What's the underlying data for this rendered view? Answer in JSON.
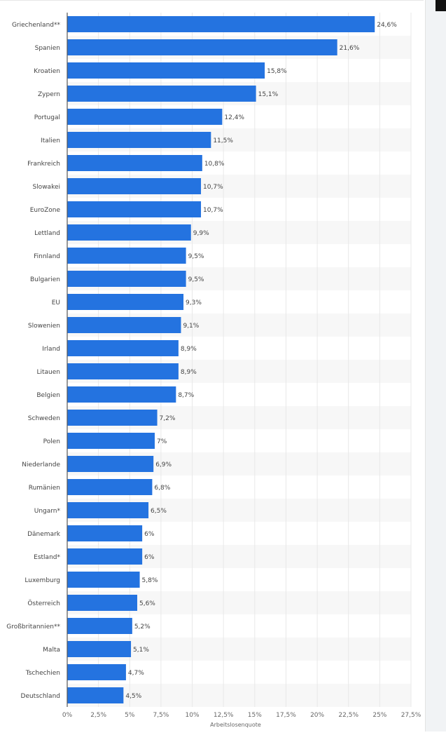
{
  "chart_data": {
    "type": "bar",
    "orientation": "horizontal",
    "categories": [
      "Griechenland**",
      "Spanien",
      "Kroatien",
      "Zypern",
      "Portugal",
      "Italien",
      "Frankreich",
      "Slowakei",
      "EuroZone",
      "Lettland",
      "Finnland",
      "Bulgarien",
      "EU",
      "Slowenien",
      "Irland",
      "Litauen",
      "Belgien",
      "Schweden",
      "Polen",
      "Niederlande",
      "Rumänien",
      "Ungarn*",
      "Dänemark",
      "Estland*",
      "Luxemburg",
      "Österreich",
      "Großbritannien**",
      "Malta",
      "Tschechien",
      "Deutschland"
    ],
    "values": [
      24.6,
      21.6,
      15.8,
      15.1,
      12.4,
      11.5,
      10.8,
      10.7,
      10.7,
      9.9,
      9.5,
      9.5,
      9.3,
      9.1,
      8.9,
      8.9,
      8.7,
      7.2,
      7,
      6.9,
      6.8,
      6.5,
      6,
      6,
      5.8,
      5.6,
      5.2,
      5.1,
      4.7,
      4.5
    ],
    "data_labels": [
      "24,6%",
      "21,6%",
      "15,8%",
      "15,1%",
      "12,4%",
      "11,5%",
      "10,8%",
      "10,7%",
      "10,7%",
      "9,9%",
      "9,5%",
      "9,5%",
      "9,3%",
      "9,1%",
      "8,9%",
      "8,9%",
      "8,7%",
      "7,2%",
      "7%",
      "6,9%",
      "6,8%",
      "6,5%",
      "6%",
      "6%",
      "5,8%",
      "5,6%",
      "5,2%",
      "5,1%",
      "4,7%",
      "4,5%"
    ],
    "xlabel": "Arbeitslosenquote",
    "ylabel": "",
    "xlim": [
      0,
      27.5
    ],
    "x_ticks": [
      0,
      2.5,
      5,
      7.5,
      10,
      12.5,
      15,
      17.5,
      20,
      22.5,
      25,
      27.5
    ],
    "x_tick_labels": [
      "0%",
      "2,5%",
      "5%",
      "7,5%",
      "10%",
      "12,5%",
      "15%",
      "17,5%",
      "20%",
      "22,5%",
      "25%",
      "27,5%"
    ],
    "grid": "vertical",
    "bar_color": "#2473e0",
    "label_star_color": "#9a9a9a"
  }
}
